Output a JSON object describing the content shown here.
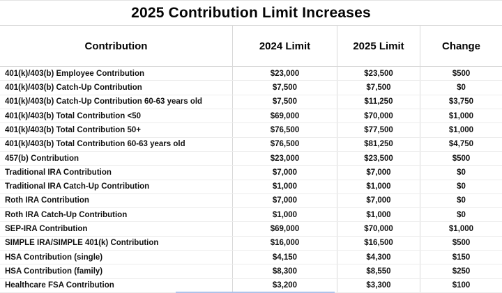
{
  "title": "2025 Contribution Limit Increases",
  "colors": {
    "background": "#ffffff",
    "grid_strong": "#d9d9d9",
    "grid_light": "#ececec",
    "text": "#111111",
    "selection_blue": "#9ab4e8"
  },
  "chart_data": {
    "type": "table",
    "title": "2025 Contribution Limit Increases",
    "columns": [
      "Contribution",
      "2024 Limit",
      "2025 Limit",
      "Change"
    ],
    "rows": [
      [
        "401(k)/403(b) Employee Contribution",
        "$23,000",
        "$23,500",
        "$500"
      ],
      [
        "401(k)/403(b) Catch-Up Contribution",
        "$7,500",
        "$7,500",
        "$0"
      ],
      [
        "401(k)/403(b) Catch-Up Contribution 60-63 years old",
        "$7,500",
        "$11,250",
        "$3,750"
      ],
      [
        "401(k)/403(b) Total Contribution <50",
        "$69,000",
        "$70,000",
        "$1,000"
      ],
      [
        "401(k)/403(b) Total Contribution 50+",
        "$76,500",
        "$77,500",
        "$1,000"
      ],
      [
        "401(k)/403(b) Total Contribution 60-63 years old",
        "$76,500",
        "$81,250",
        "$4,750"
      ],
      [
        "457(b) Contribution",
        "$23,000",
        "$23,500",
        "$500"
      ],
      [
        "Traditional IRA Contribution",
        "$7,000",
        "$7,000",
        "$0"
      ],
      [
        "Traditional IRA Catch-Up Contribution",
        "$1,000",
        "$1,000",
        "$0"
      ],
      [
        "Roth IRA Contribution",
        "$7,000",
        "$7,000",
        "$0"
      ],
      [
        "Roth IRA Catch-Up Contribution",
        "$1,000",
        "$1,000",
        "$0"
      ],
      [
        "SEP-IRA Contribution",
        "$69,000",
        "$70,000",
        "$1,000"
      ],
      [
        "SIMPLE IRA/SIMPLE 401(k) Contribution",
        "$16,000",
        "$16,500",
        "$500"
      ],
      [
        "HSA Contribution (single)",
        "$4,150",
        "$4,300",
        "$150"
      ],
      [
        "HSA Contribution (family)",
        "$8,300",
        "$8,550",
        "$250"
      ],
      [
        "Healthcare FSA Contribution",
        "$3,200",
        "$3,300",
        "$100"
      ]
    ]
  }
}
